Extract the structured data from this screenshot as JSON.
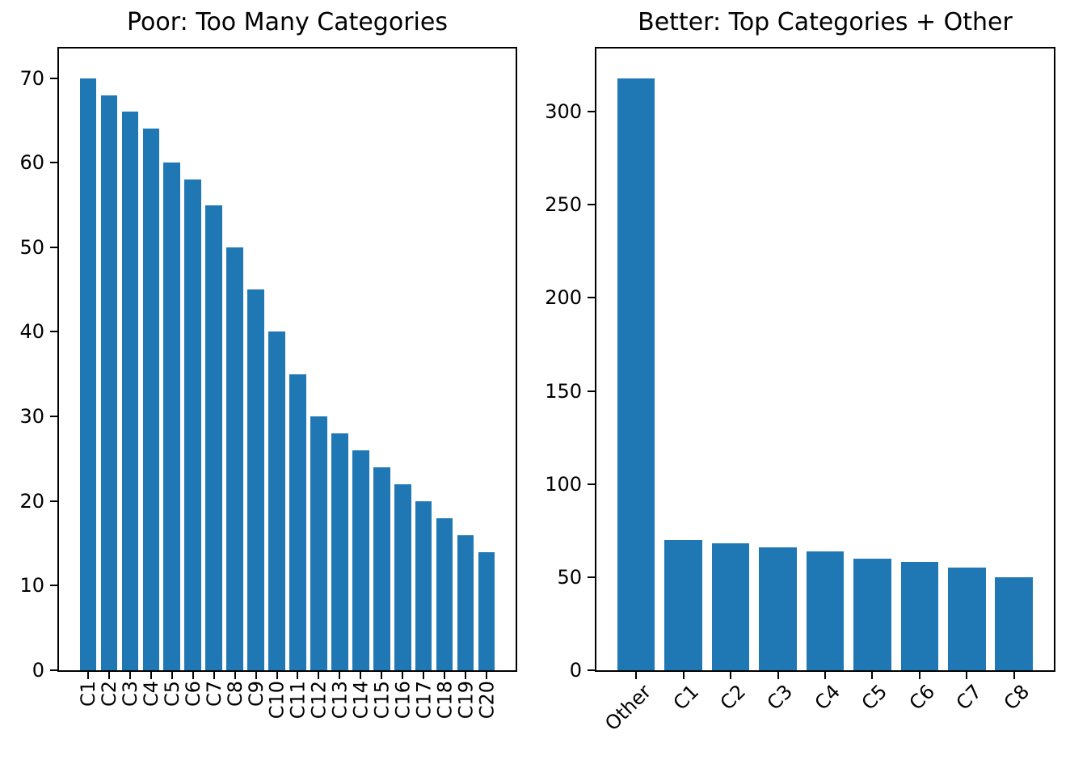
{
  "figure": {
    "background": "#ffffff",
    "axis_color": "#000000",
    "text_color": "#000000"
  },
  "chart_data": [
    {
      "type": "bar",
      "title": "Poor: Too Many Categories",
      "categories": [
        "C1",
        "C2",
        "C3",
        "C4",
        "C5",
        "C6",
        "C7",
        "C8",
        "C9",
        "C10",
        "C11",
        "C12",
        "C13",
        "C14",
        "C15",
        "C16",
        "C17",
        "C18",
        "C19",
        "C20"
      ],
      "values": [
        70,
        68,
        66,
        64,
        60,
        58,
        55,
        50,
        45,
        40,
        35,
        30,
        28,
        26,
        24,
        22,
        20,
        18,
        16,
        14
      ],
      "xlabel": "",
      "ylabel": "",
      "ylim": [
        0,
        73.5
      ],
      "yticks": [
        0,
        10,
        20,
        30,
        40,
        50,
        60,
        70
      ],
      "xtick_rotation": 90,
      "grid": false,
      "legend": "none",
      "bar_color": "#1f77b4"
    },
    {
      "type": "bar",
      "title": "Better: Top Categories + Other",
      "categories": [
        "Other",
        "C1",
        "C2",
        "C3",
        "C4",
        "C5",
        "C6",
        "C7",
        "C8"
      ],
      "values": [
        318,
        70,
        68,
        66,
        64,
        60,
        58,
        55,
        50
      ],
      "xlabel": "",
      "ylabel": "",
      "ylim": [
        0,
        333.9
      ],
      "yticks": [
        0,
        50,
        100,
        150,
        200,
        250,
        300
      ],
      "xtick_rotation": 45,
      "grid": false,
      "legend": "none",
      "bar_color": "#1f77b4"
    }
  ]
}
